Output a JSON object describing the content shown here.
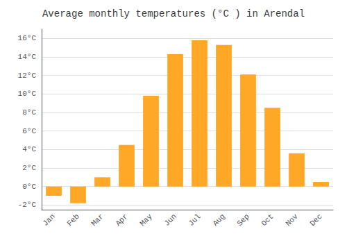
{
  "chart_data": {
    "type": "bar",
    "title": "Average monthly temperatures (°C ) in Arendal",
    "categories": [
      "Jan",
      "Feb",
      "Mar",
      "Apr",
      "May",
      "Jun",
      "Jul",
      "Aug",
      "Sep",
      "Oct",
      "Nov",
      "Dec"
    ],
    "values": [
      -1.0,
      -1.8,
      1.0,
      4.5,
      9.8,
      14.3,
      15.8,
      15.3,
      12.1,
      8.5,
      3.6,
      0.5
    ],
    "color": "#FFA726",
    "ylim": [
      -2.5,
      17.0
    ],
    "yticks": [
      {
        "value": -2,
        "label": "-2°C"
      },
      {
        "value": 0,
        "label": "0°C"
      },
      {
        "value": 2,
        "label": "2°C"
      },
      {
        "value": 4,
        "label": "4°C"
      },
      {
        "value": 6,
        "label": "6°C"
      },
      {
        "value": 8,
        "label": "8°C"
      },
      {
        "value": 10,
        "label": "10°C"
      },
      {
        "value": 12,
        "label": "12°C"
      },
      {
        "value": 14,
        "label": "14°C"
      },
      {
        "value": 16,
        "label": "16°C"
      }
    ],
    "grid": true
  }
}
